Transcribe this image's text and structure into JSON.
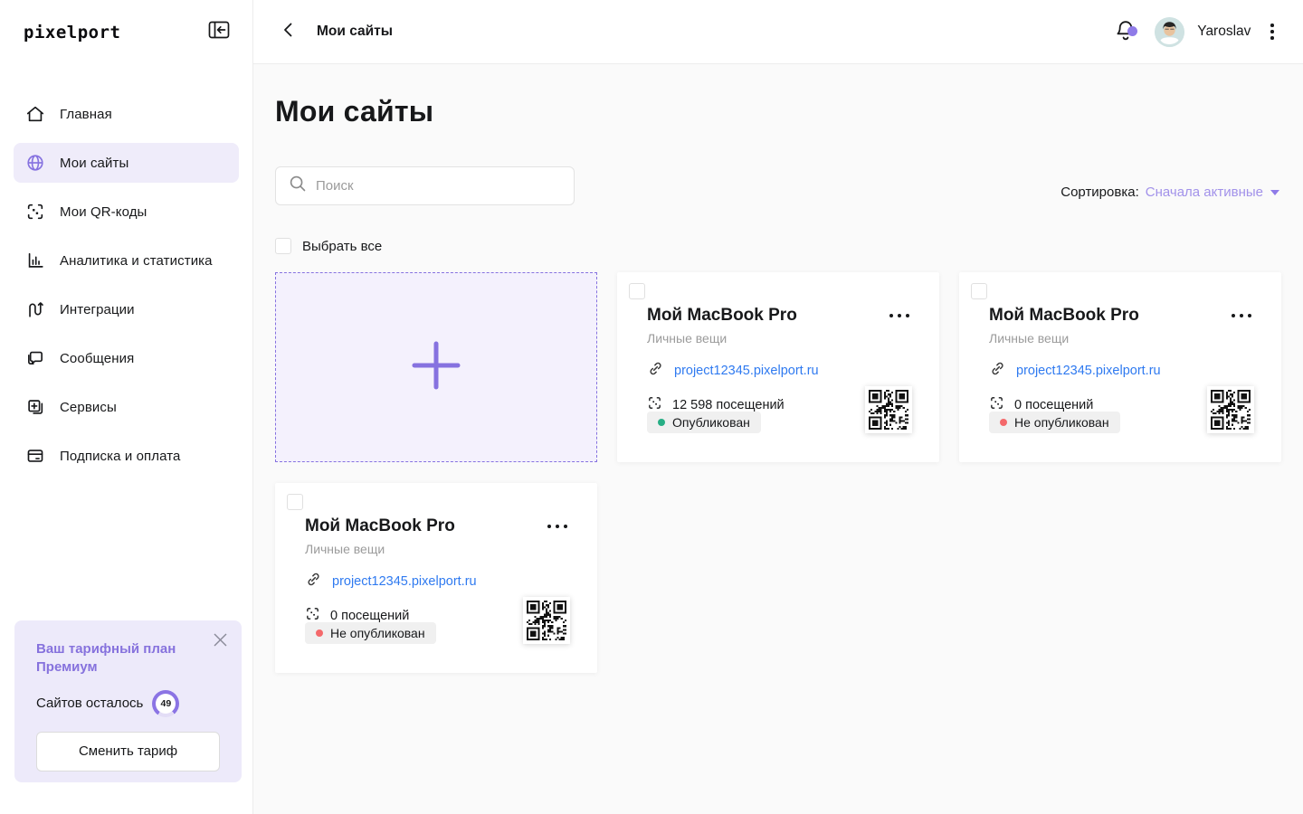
{
  "brand": {
    "logo": "pixelport"
  },
  "topbar": {
    "back_label": "Мои сайты",
    "user_name": "Yaroslav"
  },
  "sidebar": {
    "items": [
      {
        "label": "Главная",
        "icon": "home",
        "active": false
      },
      {
        "label": "Мои сайты",
        "icon": "globe",
        "active": true
      },
      {
        "label": "Мои QR-коды",
        "icon": "qr-scan",
        "active": false
      },
      {
        "label": "Аналитика и статистика",
        "icon": "bar-chart",
        "active": false
      },
      {
        "label": "Интеграции",
        "icon": "integration",
        "active": false
      },
      {
        "label": "Сообщения",
        "icon": "chat",
        "active": false
      },
      {
        "label": "Сервисы",
        "icon": "services",
        "active": false
      },
      {
        "label": "Подписка и оплата",
        "icon": "credit-card",
        "active": false
      }
    ],
    "plan": {
      "title_line1": "Ваш тарифный план",
      "title_line2": "Премиум",
      "sites_left_label": "Сайтов осталось",
      "sites_left_value": "49",
      "change_button": "Сменить тариф"
    }
  },
  "main": {
    "title": "Мои сайты",
    "search_placeholder": "Поиск",
    "sort_label": "Сортировка:",
    "sort_value": "Сначала активные",
    "select_all_label": "Выбрать все",
    "cards": [
      {
        "title": "Мой MacBook Pro",
        "category": "Личные вещи",
        "url": "project12345.pixelport.ru",
        "visits": "12 598 посещений",
        "status": "Опубликован",
        "published": true
      },
      {
        "title": "Мой MacBook Pro",
        "category": "Личные вещи",
        "url": "project12345.pixelport.ru",
        "visits": "0 посещений",
        "status": "Не опубликован",
        "published": false
      },
      {
        "title": "Мой MacBook Pro",
        "category": "Личные вещи",
        "url": "project12345.pixelport.ru",
        "visits": "0 посещений",
        "status": "Не опубликован",
        "published": false
      }
    ]
  },
  "colors": {
    "accent_purple": "#8672e0",
    "accent_light_bg": "#efecfa",
    "plan_bg": "#edeafa",
    "sort_value_purple": "#a292ea",
    "link_blue": "#2f7af0",
    "status_green": "#27ae85",
    "status_red": "#f4696b",
    "badge_bg": "#f0f0f0",
    "content_bg": "#fafafa"
  }
}
